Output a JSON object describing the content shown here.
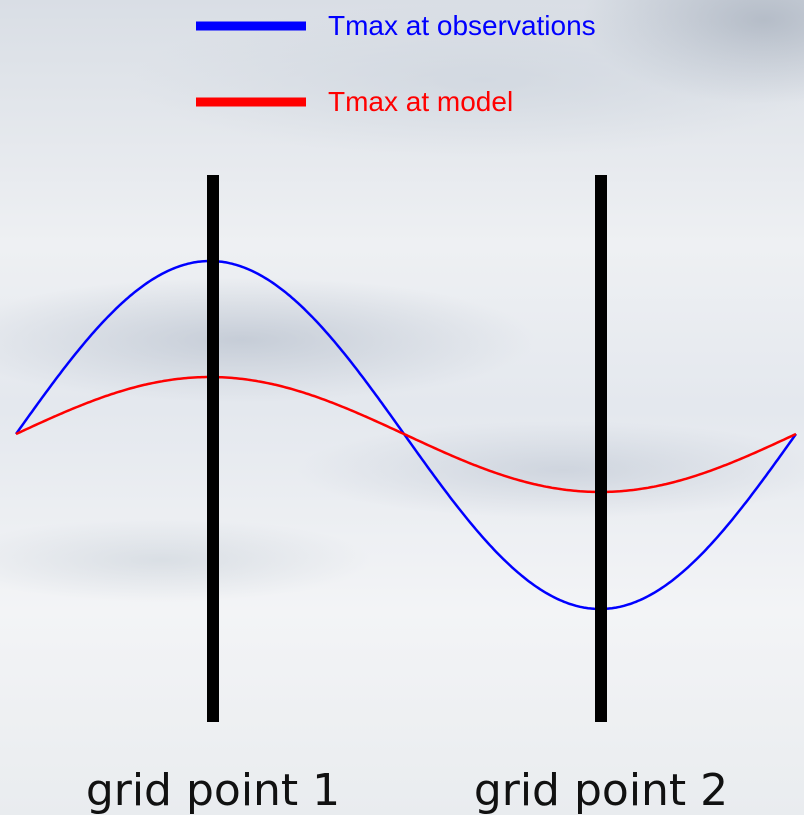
{
  "legend": [
    {
      "label": "Tmax at observations",
      "color": "#0000ff"
    },
    {
      "label": "Tmax at model",
      "color": "#ff0000"
    }
  ],
  "grid_points": [
    {
      "label": "grid point 1"
    },
    {
      "label": "grid point 2"
    }
  ],
  "colors": {
    "observations": "#0000ff",
    "model": "#ff0000",
    "grid_line": "#000000"
  }
}
